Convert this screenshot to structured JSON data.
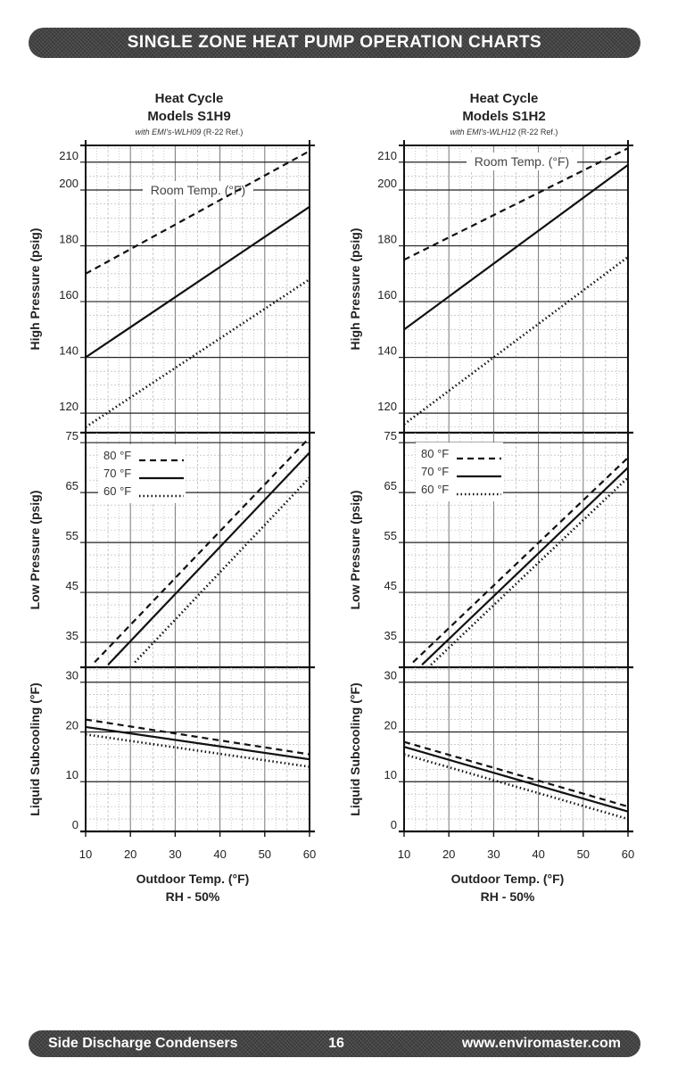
{
  "header": {
    "title": "SINGLE ZONE HEAT PUMP OPERATION CHARTS"
  },
  "footer": {
    "left": "Side Discharge Condensers",
    "page": "16",
    "right": "www.enviromaster.com"
  },
  "chart_data": [
    {
      "type": "line",
      "title": "Heat Cycle",
      "subtitle": "Models S1H9",
      "note_italic": "with EMI's-WLH09",
      "note_ref": "(R-22 Ref.)",
      "xlabel": "Outdoor Temp. (°F)",
      "xlabel2": "RH - 50%",
      "x_ticks": [
        "10",
        "20",
        "30",
        "40",
        "50",
        "60"
      ],
      "xlim": [
        10,
        60
      ],
      "legend": {
        "entries": [
          "80 °F",
          "70 °F",
          "60 °F"
        ],
        "styles": [
          "dashed",
          "solid",
          "dotted"
        ]
      },
      "panels": [
        {
          "ylabel": "High Pressure (psig)",
          "ylim": [
            113,
            216
          ],
          "y_ticks": [
            "120",
            "140",
            "160",
            "180",
            "200",
            "210"
          ],
          "y_tick_values": [
            120,
            140,
            160,
            180,
            200,
            210
          ],
          "annotation": "Room Temp. (°F)",
          "series": [
            {
              "name": "80 °F",
              "style": "dashed",
              "x": [
                10,
                60
              ],
              "y": [
                170,
                214
              ]
            },
            {
              "name": "70 °F",
              "style": "solid",
              "x": [
                10,
                60
              ],
              "y": [
                140,
                194
              ]
            },
            {
              "name": "60 °F",
              "style": "dotted",
              "x": [
                10,
                60
              ],
              "y": [
                115,
                168
              ]
            }
          ]
        },
        {
          "ylabel": "Low Pressure (psig)",
          "ylim": [
            30,
            77
          ],
          "y_ticks": [
            "35",
            "45",
            "55",
            "65",
            "75"
          ],
          "y_tick_values": [
            35,
            45,
            55,
            65,
            75
          ],
          "series": [
            {
              "name": "80 °F",
              "style": "dashed",
              "x": [
                12,
                60
              ],
              "y": [
                31,
                76
              ]
            },
            {
              "name": "70 °F",
              "style": "solid",
              "x": [
                15,
                60
              ],
              "y": [
                30.5,
                73
              ]
            },
            {
              "name": "60 °F",
              "style": "dotted",
              "x": [
                21,
                60
              ],
              "y": [
                31,
                68
              ]
            }
          ]
        },
        {
          "ylabel": "Liquid Subcooling (°F)",
          "ylim": [
            0,
            33
          ],
          "y_ticks": [
            "0",
            "10",
            "20",
            "30"
          ],
          "y_tick_values": [
            0,
            10,
            20,
            30
          ],
          "series": [
            {
              "name": "80 °F",
              "style": "dashed",
              "x": [
                10,
                60
              ],
              "y": [
                22.5,
                15.5
              ]
            },
            {
              "name": "70 °F",
              "style": "solid",
              "x": [
                10,
                60
              ],
              "y": [
                21,
                14.5
              ]
            },
            {
              "name": "60 °F",
              "style": "dotted",
              "x": [
                10,
                60
              ],
              "y": [
                19.5,
                13
              ]
            }
          ]
        }
      ]
    },
    {
      "type": "line",
      "title": "Heat Cycle",
      "subtitle": "Models S1H2",
      "note_italic": "with EMI's-WLH12",
      "note_ref": "(R-22 Ref.)",
      "xlabel": "Outdoor Temp. (°F)",
      "xlabel2": "RH - 50%",
      "x_ticks": [
        "10",
        "20",
        "30",
        "40",
        "50",
        "60"
      ],
      "xlim": [
        10,
        60
      ],
      "legend": {
        "entries": [
          "80 °F",
          "70 °F",
          "60 °F"
        ],
        "styles": [
          "dashed",
          "solid",
          "dotted"
        ]
      },
      "panels": [
        {
          "ylabel": "High Pressure (psig)",
          "ylim": [
            113,
            216
          ],
          "y_ticks": [
            "120",
            "140",
            "160",
            "180",
            "200",
            "210"
          ],
          "y_tick_values": [
            120,
            140,
            160,
            180,
            200,
            210
          ],
          "annotation": "Room Temp. (°F)",
          "series": [
            {
              "name": "80 °F",
              "style": "dashed",
              "x": [
                10,
                60
              ],
              "y": [
                175,
                215
              ]
            },
            {
              "name": "70 °F",
              "style": "solid",
              "x": [
                10,
                60
              ],
              "y": [
                150,
                209
              ]
            },
            {
              "name": "60 °F",
              "style": "dotted",
              "x": [
                10,
                60
              ],
              "y": [
                116,
                176
              ]
            }
          ]
        },
        {
          "ylabel": "Low Pressure (psig)",
          "ylim": [
            30,
            77
          ],
          "y_ticks": [
            "35",
            "45",
            "55",
            "65",
            "75"
          ],
          "y_tick_values": [
            35,
            45,
            55,
            65,
            75
          ],
          "series": [
            {
              "name": "80 °F",
              "style": "dashed",
              "x": [
                12,
                60
              ],
              "y": [
                31,
                72
              ]
            },
            {
              "name": "70 °F",
              "style": "solid",
              "x": [
                14,
                60
              ],
              "y": [
                30.5,
                70
              ]
            },
            {
              "name": "60 °F",
              "style": "dotted",
              "x": [
                16,
                60
              ],
              "y": [
                30.5,
                68
              ]
            }
          ]
        },
        {
          "ylabel": "Liquid Subcooling (°F)",
          "ylim": [
            0,
            33
          ],
          "y_ticks": [
            "0",
            "10",
            "20",
            "30"
          ],
          "y_tick_values": [
            0,
            10,
            20,
            30
          ],
          "series": [
            {
              "name": "80 °F",
              "style": "dashed",
              "x": [
                10,
                60
              ],
              "y": [
                18,
                5
              ]
            },
            {
              "name": "70 °F",
              "style": "solid",
              "x": [
                10,
                60
              ],
              "y": [
                17,
                4
              ]
            },
            {
              "name": "60 °F",
              "style": "dotted",
              "x": [
                10,
                60
              ],
              "y": [
                15.5,
                2.5
              ]
            }
          ]
        }
      ]
    }
  ]
}
